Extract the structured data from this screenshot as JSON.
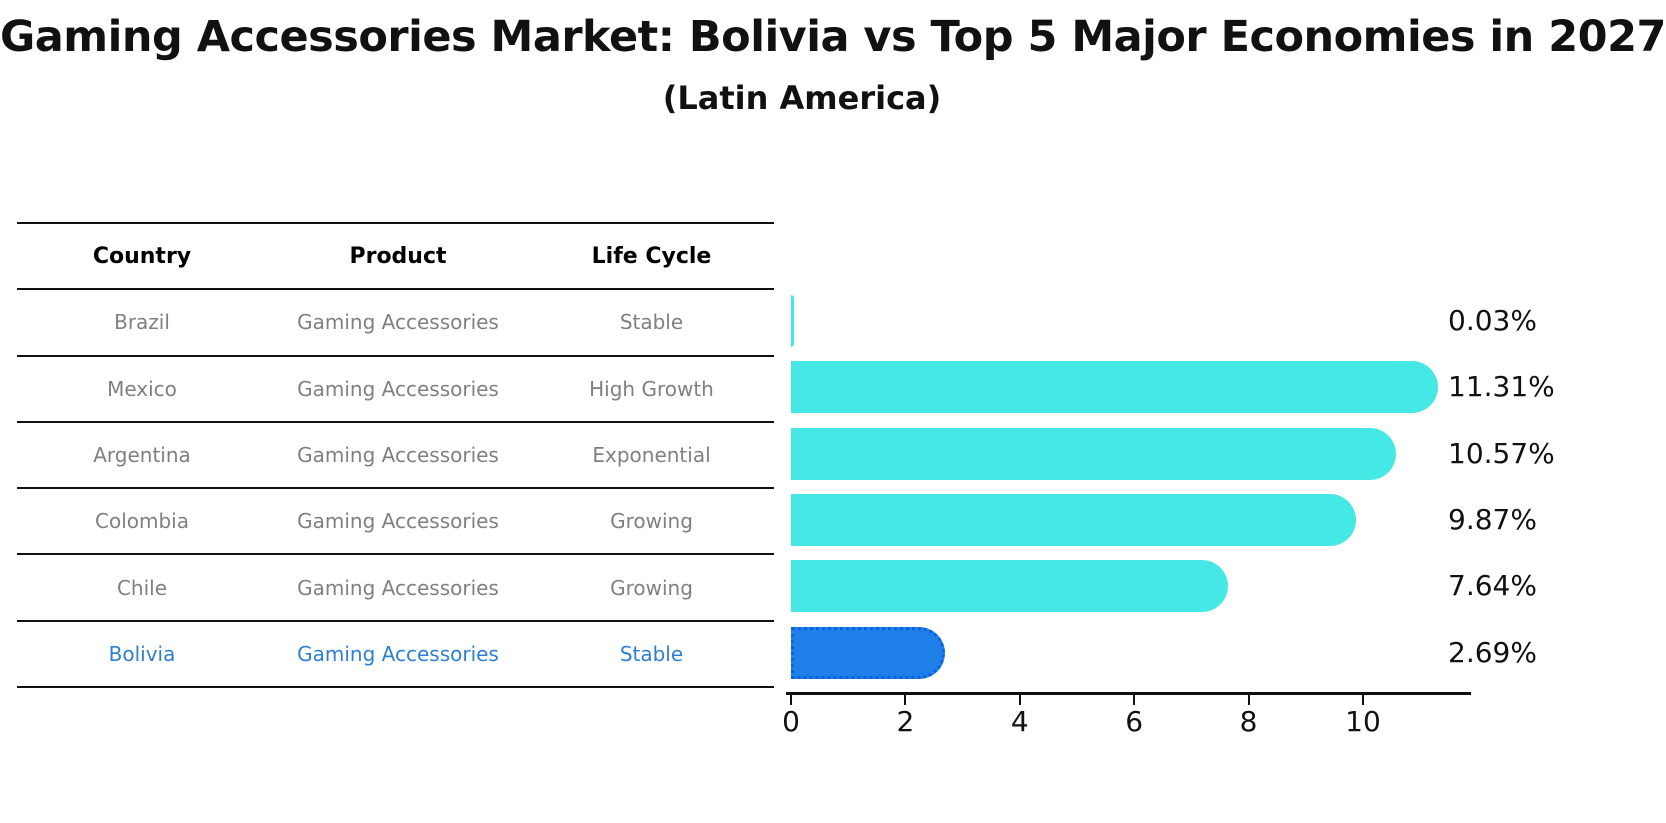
{
  "title": "Gaming Accessories Market: Bolivia vs Top 5 Major Economies in 2027",
  "subtitle": "(Latin America)",
  "table": {
    "columns": [
      "Country",
      "Product",
      "Life Cycle"
    ],
    "rows": [
      {
        "country": "Brazil",
        "product": "Gaming Accessories",
        "life_cycle": "Stable",
        "highlight": false
      },
      {
        "country": "Mexico",
        "product": "Gaming Accessories",
        "life_cycle": "High Growth",
        "highlight": false
      },
      {
        "country": "Argentina",
        "product": "Gaming Accessories",
        "life_cycle": "Exponential",
        "highlight": false
      },
      {
        "country": "Colombia",
        "product": "Gaming Accessories",
        "life_cycle": "Growing",
        "highlight": false
      },
      {
        "country": "Chile",
        "product": "Gaming Accessories",
        "life_cycle": "Growing",
        "highlight": false
      },
      {
        "country": "Bolivia",
        "product": "Gaming Accessories",
        "life_cycle": "Stable",
        "highlight": true
      }
    ]
  },
  "chart_data": {
    "type": "bar",
    "orientation": "horizontal",
    "title": "Gaming Accessories Market: Bolivia vs Top 5 Major Economies in 2027",
    "subtitle": "(Latin America)",
    "categories": [
      "Brazil",
      "Mexico",
      "Argentina",
      "Colombia",
      "Chile",
      "Bolivia"
    ],
    "values": [
      0.03,
      11.31,
      10.57,
      9.87,
      7.64,
      2.69
    ],
    "value_labels": [
      "0.03%",
      "11.31%",
      "10.57%",
      "9.87%",
      "7.64%",
      "2.69%"
    ],
    "xlabel": "",
    "ylabel": "",
    "x_ticks": [
      0,
      2,
      4,
      6,
      8,
      10
    ],
    "xlim": [
      0,
      11.9
    ],
    "grid": false,
    "legend": false,
    "bar_color": "#46e8e6",
    "highlight_color": "#1e7fe8",
    "highlight_border_color": "#0b62dd",
    "highlight_index": 5,
    "axis_color": "#111111",
    "muted_text_color": "#808080",
    "highlight_text_color": "#2e7fd2"
  }
}
